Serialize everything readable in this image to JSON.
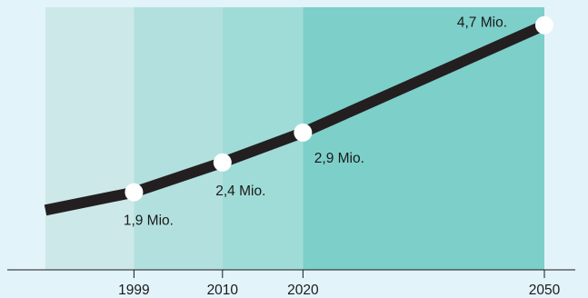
{
  "chart_data": {
    "type": "line",
    "x": [
      1999,
      2010,
      2020,
      2050
    ],
    "values": [
      1.9,
      2.4,
      2.9,
      4.7
    ],
    "point_labels": [
      "1,9 Mio.",
      "2,4 Mio.",
      "2,9 Mio.",
      "4,7 Mio."
    ],
    "tick_labels": [
      "1999",
      "2010",
      "2020",
      "2050"
    ],
    "xlim": [
      1988,
      2050
    ],
    "ylim": [
      0.6,
      5.0
    ],
    "line_start_value": 1.6,
    "band_colors": [
      "#cde8e8",
      "#b2e0de",
      "#a0dcd7",
      "#7dcfca"
    ],
    "line_color": "#231f20",
    "marker_color": "#ffffff",
    "grid": false
  }
}
